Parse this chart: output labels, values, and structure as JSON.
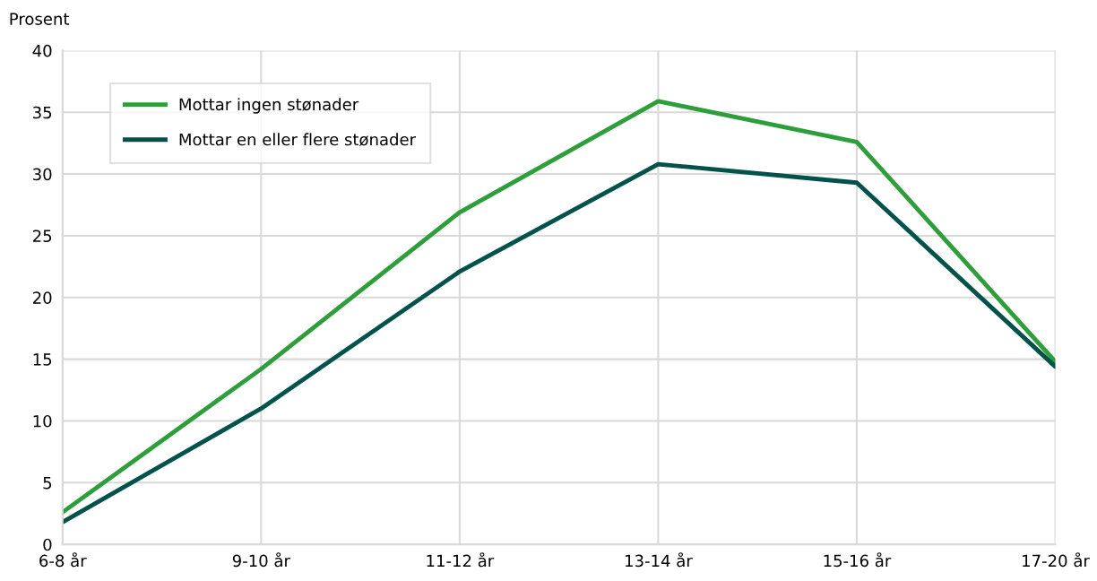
{
  "chart_data": {
    "type": "line",
    "ylabel": "Prosent",
    "categories": [
      "6-8 år",
      "9-10 år",
      "11-12 år",
      "13-14 år",
      "15-16 år",
      "17-20 år"
    ],
    "series": [
      {
        "name": "Mottar ingen stønader",
        "color": "#2e9e3a",
        "values": [
          2.6,
          14.2,
          26.9,
          35.9,
          32.6,
          14.8
        ]
      },
      {
        "name": "Mottar en eller flere stønader",
        "color": "#00524a",
        "values": [
          1.8,
          11.0,
          22.1,
          30.8,
          29.3,
          14.4
        ]
      }
    ],
    "ylim": [
      0,
      40
    ],
    "yticks": [
      0,
      5,
      10,
      15,
      20,
      25,
      30,
      35,
      40
    ],
    "grid": true,
    "legend": "top left",
    "marker": "none",
    "line_style": "solid"
  }
}
